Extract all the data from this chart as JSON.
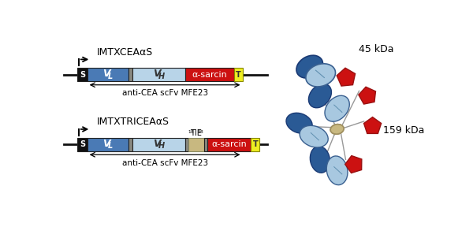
{
  "bg_color": "#ffffff",
  "top_label": "IMTXCEAαS",
  "bot_label": "IMTXTRICEAαS",
  "anti_cea_label": "anti-CEA scFv MFE23",
  "tie_label": "18TIE18",
  "top_kda": "45 kDa",
  "bot_kda": "159 kDa",
  "color_VL": "#4a7ab5",
  "color_VH": "#b8d4e8",
  "color_sarcin": "#cc1111",
  "color_linker": "#888880",
  "color_TIE": "#c8b880",
  "color_S": "#111111",
  "color_T": "#eeee22",
  "color_line": "#111111",
  "color_dark_blue": "#2a5a95",
  "color_light_blue": "#a8c8e0"
}
